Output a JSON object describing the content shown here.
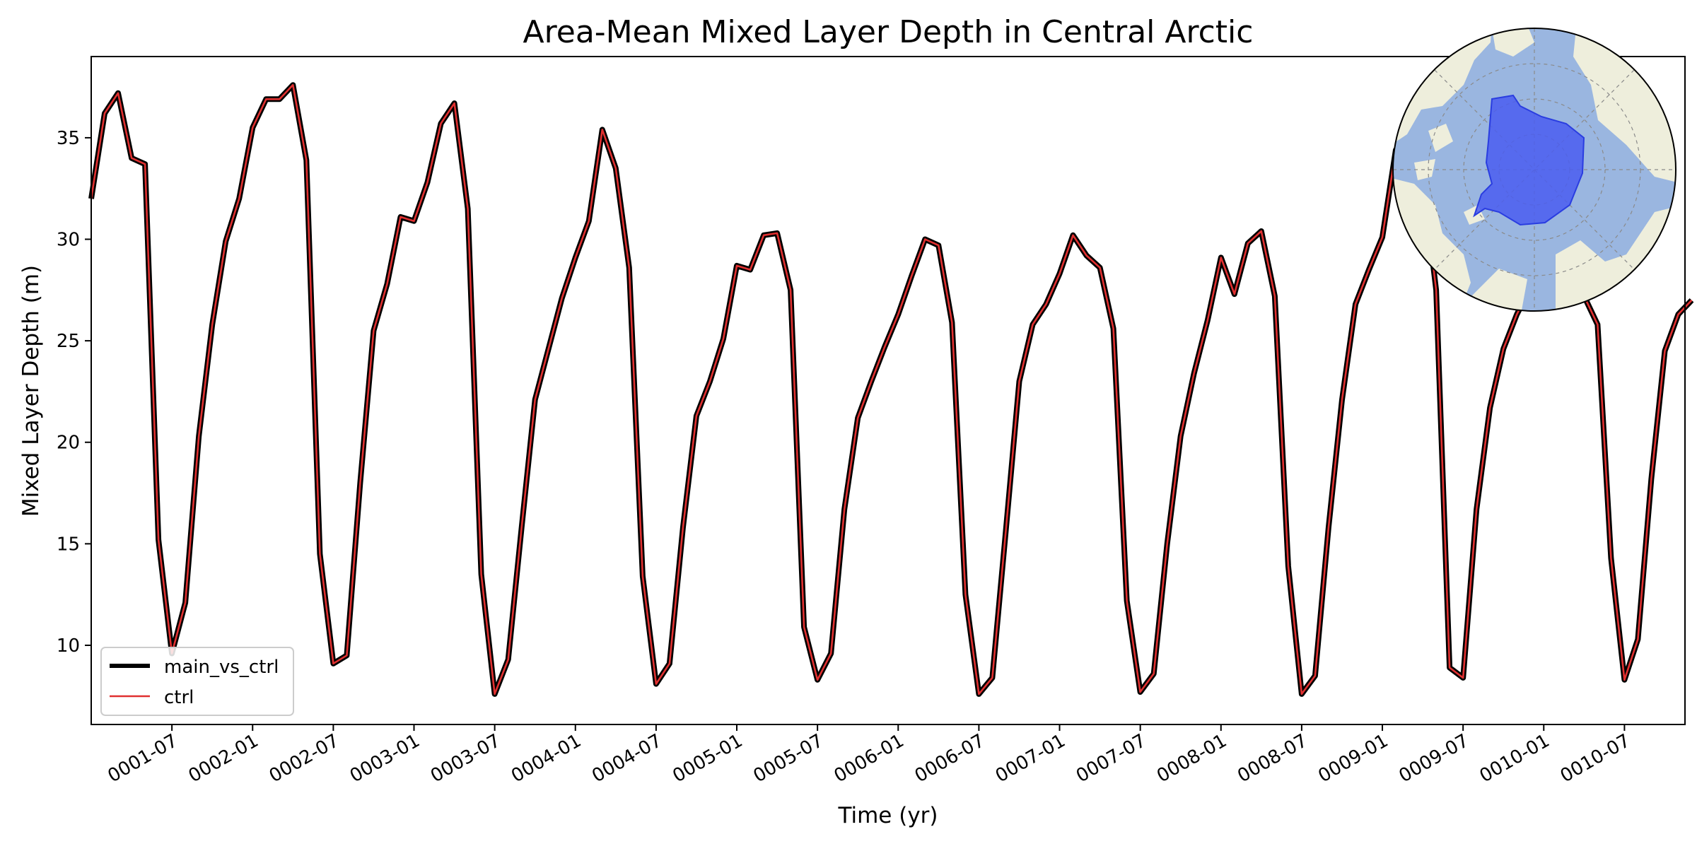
{
  "chart_data": {
    "type": "line",
    "title": "Area-Mean Mixed Layer Depth in Central Arctic",
    "xlabel": "Time (yr)",
    "ylabel": "Mixed Layer Depth (m)",
    "xlim": [
      "0001-01",
      "0010-12"
    ],
    "ylim": [
      6.1,
      39.0
    ],
    "yticks": [
      10,
      15,
      20,
      25,
      30,
      35
    ],
    "xticks": [
      "0001-07",
      "0002-01",
      "0002-07",
      "0003-01",
      "0003-07",
      "0004-01",
      "0004-07",
      "0005-01",
      "0005-07",
      "0006-01",
      "0006-07",
      "0007-01",
      "0007-07",
      "0008-01",
      "0008-07",
      "0009-01",
      "0009-07",
      "0010-01",
      "0010-07"
    ],
    "grid": false,
    "legend": "lower-left",
    "series": [
      {
        "name": "main_vs_ctrl",
        "color": "#000000",
        "values": [
          32.0,
          36.2,
          37.2,
          34.0,
          33.7,
          15.2,
          9.6,
          12.1,
          20.3,
          25.8,
          29.9,
          32.0,
          35.5,
          36.9,
          36.9,
          37.6,
          33.9,
          14.5,
          9.1,
          9.5,
          18.0,
          25.5,
          27.8,
          31.1,
          30.9,
          32.8,
          35.7,
          36.7,
          31.5,
          13.5,
          7.6,
          9.3,
          15.8,
          22.1,
          24.6,
          27.1,
          29.1,
          30.9,
          35.4,
          33.5,
          28.6,
          13.4,
          8.1,
          9.1,
          15.8,
          21.3,
          23.0,
          25.1,
          28.7,
          28.5,
          30.2,
          30.3,
          27.5,
          10.9,
          8.3,
          9.6,
          16.7,
          21.2,
          23.0,
          24.7,
          26.3,
          28.2,
          30.0,
          29.7,
          25.9,
          12.5,
          7.6,
          8.4,
          15.6,
          23.0,
          25.8,
          26.8,
          28.3,
          30.2,
          29.2,
          28.6,
          25.6,
          12.2,
          7.7,
          8.6,
          15.0,
          20.3,
          23.4,
          26.0,
          29.1,
          27.3,
          29.8,
          30.4,
          27.2,
          13.9,
          7.6,
          8.5,
          15.8,
          22.1,
          26.8,
          28.5,
          30.1,
          34.4,
          34.2,
          33.0,
          27.5,
          8.9,
          8.4,
          16.7,
          21.7,
          24.6,
          26.3,
          27.6,
          27.8,
          27.9,
          27.7,
          27.2,
          25.8,
          14.3,
          8.3,
          10.3,
          18.2,
          24.5,
          26.3,
          27.0
        ]
      },
      {
        "name": "ctrl",
        "color": "#e03030",
        "values": [
          32.0,
          36.2,
          37.2,
          34.0,
          33.7,
          15.2,
          9.6,
          12.1,
          20.3,
          25.8,
          29.9,
          32.0,
          35.5,
          36.9,
          36.9,
          37.6,
          33.9,
          14.5,
          9.1,
          9.5,
          18.0,
          25.5,
          27.8,
          31.1,
          30.9,
          32.8,
          35.7,
          36.7,
          31.5,
          13.5,
          7.6,
          9.3,
          15.8,
          22.1,
          24.6,
          27.1,
          29.1,
          30.9,
          35.4,
          33.5,
          28.6,
          13.4,
          8.1,
          9.1,
          15.8,
          21.3,
          23.0,
          25.1,
          28.7,
          28.5,
          30.2,
          30.3,
          27.5,
          10.9,
          8.3,
          9.6,
          16.7,
          21.2,
          23.0,
          24.7,
          26.3,
          28.2,
          30.0,
          29.7,
          25.9,
          12.5,
          7.6,
          8.4,
          15.6,
          23.0,
          25.8,
          26.8,
          28.3,
          30.2,
          29.2,
          28.6,
          25.6,
          12.2,
          7.7,
          8.6,
          15.0,
          20.3,
          23.4,
          26.0,
          29.1,
          27.3,
          29.8,
          30.4,
          27.2,
          13.9,
          7.6,
          8.5,
          15.8,
          22.1,
          26.8,
          28.5,
          30.1,
          34.4,
          34.2,
          33.0,
          27.5,
          8.9,
          8.4,
          16.7,
          21.7,
          24.6,
          26.3,
          27.6,
          27.8,
          27.9,
          27.7,
          27.2,
          25.8,
          14.3,
          8.3,
          10.3,
          18.2,
          24.5,
          26.3,
          27.0
        ]
      }
    ]
  },
  "inset_map": {
    "icon": "polar-stereographic-map-icon",
    "ocean_color": "#9ab6e0",
    "land_color": "#eeeedc",
    "region_color": "#4a5df0"
  }
}
